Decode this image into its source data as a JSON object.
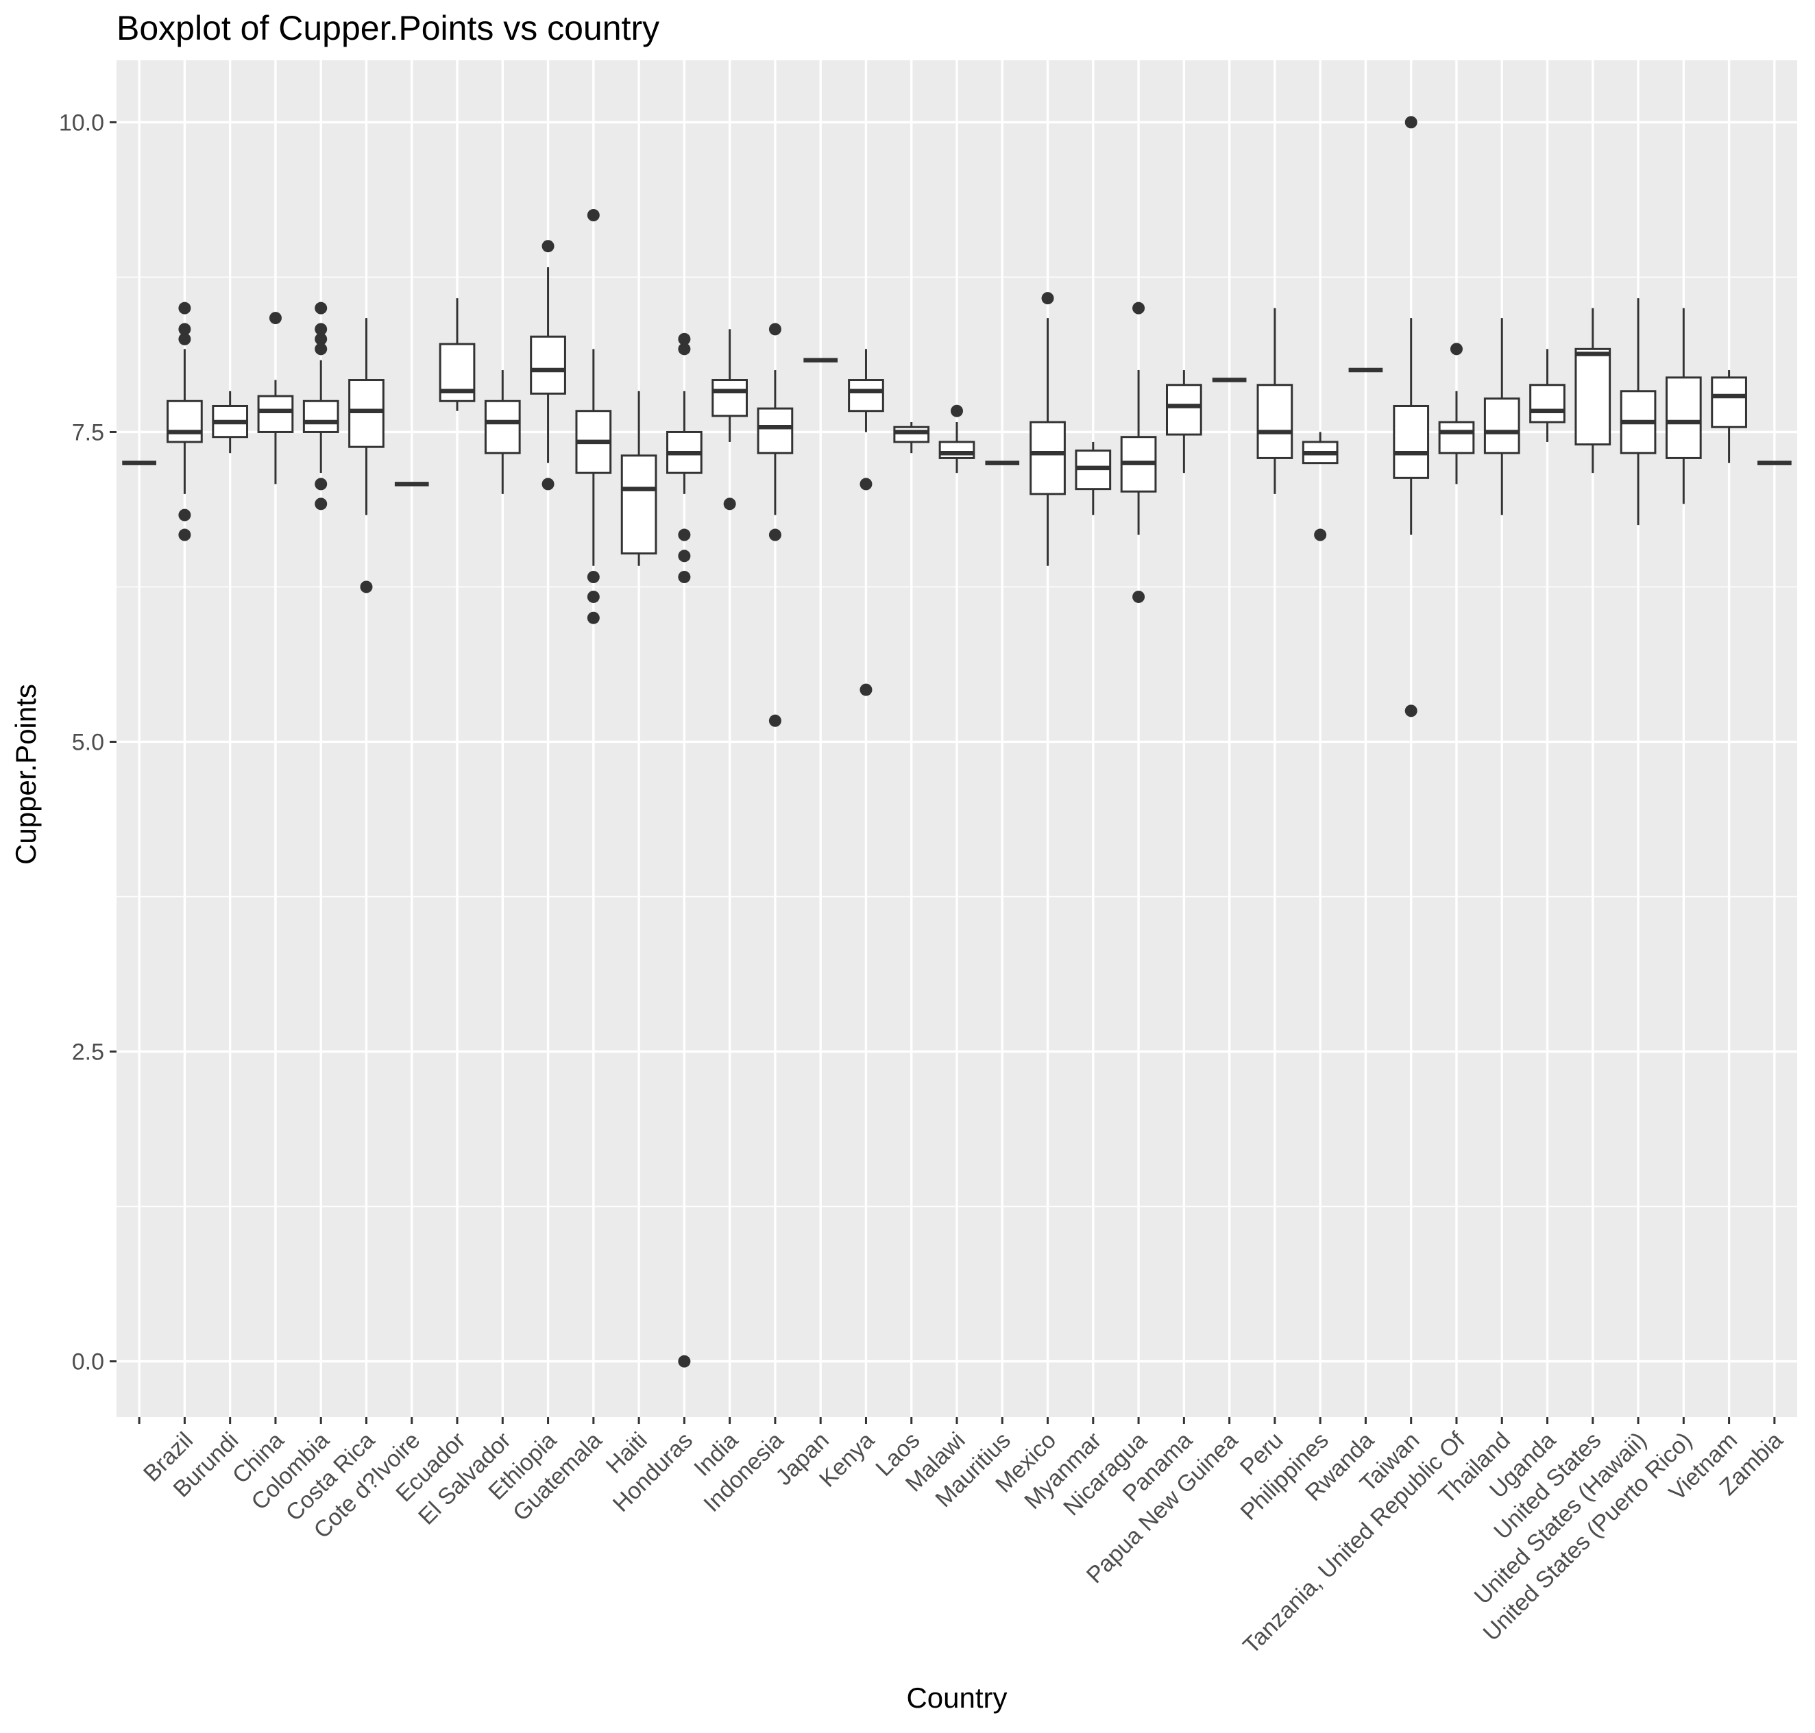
{
  "chart_data": {
    "type": "boxplot",
    "title": "Boxplot of Cupper.Points vs country",
    "xlabel": "Country",
    "ylabel": "Cupper.Points",
    "ylim": [
      -0.45,
      10.5
    ],
    "y_ticks": [
      0,
      2.5,
      5,
      7.5,
      10
    ],
    "y_tick_labels": [
      "0.0",
      "2.5",
      "5.0",
      "7.5",
      "10.0"
    ],
    "grid": true,
    "legend": "none",
    "colors": {
      "panel": "#ebebeb",
      "grid": "#ffffff",
      "box_line": "#333333",
      "box_fill": "#ffffff",
      "text": "#000000",
      "tick_text": "#4d4d4d"
    },
    "categories": [
      "",
      "Brazil",
      "Burundi",
      "China",
      "Colombia",
      "Costa Rica",
      "Cote d?Ivoire",
      "Ecuador",
      "El Salvador",
      "Ethiopia",
      "Guatemala",
      "Haiti",
      "Honduras",
      "India",
      "Indonesia",
      "Japan",
      "Kenya",
      "Laos",
      "Malawi",
      "Mauritius",
      "Mexico",
      "Myanmar",
      "Nicaragua",
      "Panama",
      "Papua New Guinea",
      "Peru",
      "Philippines",
      "Rwanda",
      "Taiwan",
      "Tanzania, United Republic Of",
      "Thailand",
      "Uganda",
      "United States",
      "United States (Hawaii)",
      "United States (Puerto Rico)",
      "Vietnam",
      "Zambia"
    ],
    "boxes": [
      {
        "min": 7.25,
        "q1": 7.25,
        "median": 7.25,
        "q3": 7.25,
        "max": 7.25,
        "outliers": []
      },
      {
        "min": 7.0,
        "q1": 7.42,
        "median": 7.5,
        "q3": 7.75,
        "max": 8.17,
        "outliers": [
          6.67,
          6.83,
          8.25,
          8.33,
          8.5
        ]
      },
      {
        "min": 7.33,
        "q1": 7.46,
        "median": 7.58,
        "q3": 7.71,
        "max": 7.83,
        "outliers": []
      },
      {
        "min": 7.08,
        "q1": 7.5,
        "median": 7.67,
        "q3": 7.79,
        "max": 7.92,
        "outliers": [
          8.42
        ]
      },
      {
        "min": 7.17,
        "q1": 7.5,
        "median": 7.58,
        "q3": 7.75,
        "max": 8.08,
        "outliers": [
          6.92,
          7.08,
          8.17,
          8.25,
          8.33,
          8.5
        ]
      },
      {
        "min": 6.83,
        "q1": 7.38,
        "median": 7.67,
        "q3": 7.92,
        "max": 8.42,
        "outliers": [
          6.25
        ]
      },
      {
        "min": 7.08,
        "q1": 7.08,
        "median": 7.08,
        "q3": 7.08,
        "max": 7.08,
        "outliers": []
      },
      {
        "min": 7.67,
        "q1": 7.75,
        "median": 7.83,
        "q3": 8.21,
        "max": 8.58,
        "outliers": []
      },
      {
        "min": 7.0,
        "q1": 7.33,
        "median": 7.58,
        "q3": 7.75,
        "max": 8.0,
        "outliers": []
      },
      {
        "min": 7.25,
        "q1": 7.81,
        "median": 8.0,
        "q3": 8.27,
        "max": 8.83,
        "outliers": [
          7.08,
          9.0
        ]
      },
      {
        "min": 6.42,
        "q1": 7.17,
        "median": 7.42,
        "q3": 7.67,
        "max": 8.17,
        "outliers": [
          6.0,
          6.17,
          6.33,
          9.25
        ]
      },
      {
        "min": 6.42,
        "q1": 6.52,
        "median": 7.04,
        "q3": 7.31,
        "max": 7.83,
        "outliers": []
      },
      {
        "min": 7.0,
        "q1": 7.17,
        "median": 7.33,
        "q3": 7.5,
        "max": 7.83,
        "outliers": [
          0.0,
          6.33,
          6.5,
          6.67,
          8.17,
          8.25
        ]
      },
      {
        "min": 7.42,
        "q1": 7.63,
        "median": 7.83,
        "q3": 7.92,
        "max": 8.33,
        "outliers": [
          6.92
        ]
      },
      {
        "min": 6.83,
        "q1": 7.33,
        "median": 7.54,
        "q3": 7.69,
        "max": 8.0,
        "outliers": [
          5.17,
          6.67,
          8.33
        ]
      },
      {
        "min": 8.08,
        "q1": 8.08,
        "median": 8.08,
        "q3": 8.08,
        "max": 8.08,
        "outliers": []
      },
      {
        "min": 7.5,
        "q1": 7.67,
        "median": 7.83,
        "q3": 7.92,
        "max": 8.17,
        "outliers": [
          5.42,
          7.08
        ]
      },
      {
        "min": 7.33,
        "q1": 7.42,
        "median": 7.5,
        "q3": 7.54,
        "max": 7.58,
        "outliers": []
      },
      {
        "min": 7.17,
        "q1": 7.29,
        "median": 7.33,
        "q3": 7.42,
        "max": 7.58,
        "outliers": [
          7.67
        ]
      },
      {
        "min": 7.25,
        "q1": 7.25,
        "median": 7.25,
        "q3": 7.25,
        "max": 7.25,
        "outliers": []
      },
      {
        "min": 6.42,
        "q1": 7.0,
        "median": 7.33,
        "q3": 7.58,
        "max": 8.42,
        "outliers": [
          8.58
        ]
      },
      {
        "min": 6.83,
        "q1": 7.04,
        "median": 7.21,
        "q3": 7.35,
        "max": 7.42,
        "outliers": []
      },
      {
        "min": 6.67,
        "q1": 7.02,
        "median": 7.25,
        "q3": 7.46,
        "max": 8.0,
        "outliers": [
          6.17,
          8.5
        ]
      },
      {
        "min": 7.17,
        "q1": 7.48,
        "median": 7.71,
        "q3": 7.88,
        "max": 8.0,
        "outliers": []
      },
      {
        "min": 7.92,
        "q1": 7.92,
        "median": 7.92,
        "q3": 7.92,
        "max": 7.92,
        "outliers": []
      },
      {
        "min": 7.0,
        "q1": 7.29,
        "median": 7.5,
        "q3": 7.88,
        "max": 8.5,
        "outliers": []
      },
      {
        "min": 7.25,
        "q1": 7.25,
        "median": 7.33,
        "q3": 7.42,
        "max": 7.5,
        "outliers": [
          6.67
        ]
      },
      {
        "min": 8.0,
        "q1": 8.0,
        "median": 8.0,
        "q3": 8.0,
        "max": 8.0,
        "outliers": []
      },
      {
        "min": 6.67,
        "q1": 7.13,
        "median": 7.33,
        "q3": 7.71,
        "max": 8.42,
        "outliers": [
          5.25,
          10.0
        ]
      },
      {
        "min": 7.08,
        "q1": 7.33,
        "median": 7.5,
        "q3": 7.58,
        "max": 7.83,
        "outliers": [
          8.17
        ]
      },
      {
        "min": 6.83,
        "q1": 7.33,
        "median": 7.5,
        "q3": 7.77,
        "max": 8.42,
        "outliers": []
      },
      {
        "min": 7.42,
        "q1": 7.58,
        "median": 7.67,
        "q3": 7.88,
        "max": 8.17,
        "outliers": []
      },
      {
        "min": 7.17,
        "q1": 7.4,
        "median": 8.13,
        "q3": 8.17,
        "max": 8.5,
        "outliers": []
      },
      {
        "min": 6.75,
        "q1": 7.33,
        "median": 7.58,
        "q3": 7.83,
        "max": 8.58,
        "outliers": []
      },
      {
        "min": 6.92,
        "q1": 7.29,
        "median": 7.58,
        "q3": 7.94,
        "max": 8.5,
        "outliers": []
      },
      {
        "min": 7.25,
        "q1": 7.54,
        "median": 7.79,
        "q3": 7.94,
        "max": 8.0,
        "outliers": []
      },
      {
        "min": 7.25,
        "q1": 7.25,
        "median": 7.25,
        "q3": 7.25,
        "max": 7.25,
        "outliers": []
      }
    ]
  }
}
